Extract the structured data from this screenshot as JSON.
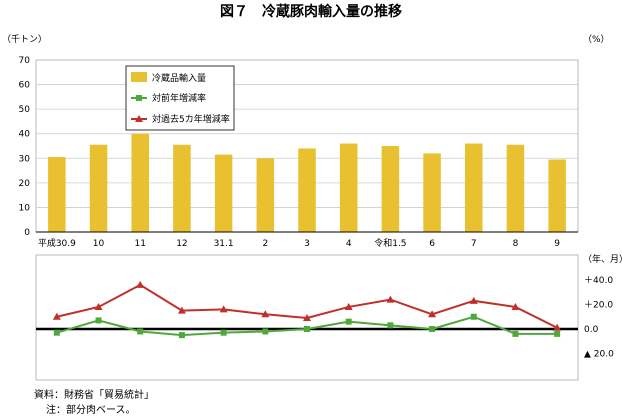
{
  "title": "図７　冷蔵豚肉輸入量の推移",
  "chart_data": {
    "type": "bar+line",
    "categories": [
      "平成30.9",
      "10",
      "11",
      "12",
      "31.1",
      "2",
      "3",
      "4",
      "令和1.5",
      "6",
      "7",
      "8",
      "9"
    ],
    "x_unit": "（年、月）",
    "top_panel": {
      "y_unit": "（千トン）",
      "ylim": [
        0,
        70
      ],
      "yticks": [
        "0",
        "10",
        "20",
        "30",
        "40",
        "50",
        "60",
        "70"
      ],
      "grid": true,
      "series": [
        {
          "name": "冷蔵品輸入量",
          "type": "bar",
          "color": "#E8C030",
          "values": [
            30.5,
            35.5,
            40,
            35.5,
            31.5,
            30,
            34,
            36,
            35,
            32,
            36,
            35.5,
            29.5
          ]
        }
      ]
    },
    "bottom_panel": {
      "y_unit": "（%）",
      "ylim": [
        -20,
        50
      ],
      "yticks": [
        "＋40.0",
        "＋20.0",
        "0.0",
        "▲ 20.0"
      ],
      "ytick_values": [
        40,
        20,
        0,
        -20
      ],
      "series": [
        {
          "name": "対前年増減率",
          "type": "line",
          "marker": "square",
          "color": "#4FA83A",
          "values": [
            -3,
            7,
            -2,
            -5,
            -3,
            -2,
            0,
            6,
            3,
            0,
            10,
            -4,
            -4
          ]
        },
        {
          "name": "対過去5カ年増減率",
          "type": "line",
          "marker": "triangle",
          "color": "#C0302A",
          "values": [
            10,
            18,
            36,
            15,
            16,
            12,
            9,
            18,
            24,
            12,
            23,
            18,
            1
          ]
        }
      ]
    },
    "legend": {
      "placement": "top-left",
      "items": [
        {
          "label": "冷蔵品輸入量",
          "marker": "bar",
          "color": "#E8C030"
        },
        {
          "label": "対前年増減率",
          "marker": "square-line",
          "color": "#4FA83A"
        },
        {
          "label": "対過去5カ年増減率",
          "marker": "triangle-line",
          "color": "#C0302A"
        }
      ]
    }
  },
  "notes": {
    "source": "資料：財務省「貿易統計」",
    "note": "注：部分肉ベース。"
  }
}
